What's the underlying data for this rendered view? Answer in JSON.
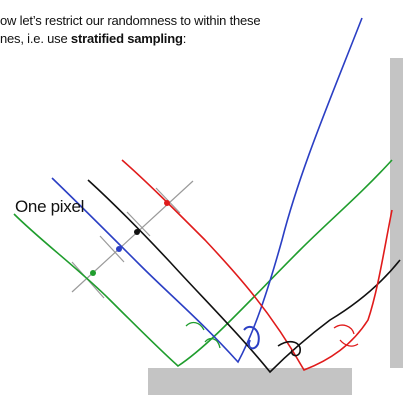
{
  "caption": {
    "line1": "ow let’s restrict our randomness to within these",
    "line2_prefix": "nes, i.e. use ",
    "line2_bold": "stratified sampling",
    "line2_suffix": ":"
  },
  "labels": {
    "one_pixel": "One pixel"
  },
  "colors": {
    "red": "#e01b1b",
    "green": "#1f9d2d",
    "blue": "#2b3fc4",
    "black": "#111111",
    "gray": "#bdbdbd",
    "grid": "#9a9a9a"
  }
}
